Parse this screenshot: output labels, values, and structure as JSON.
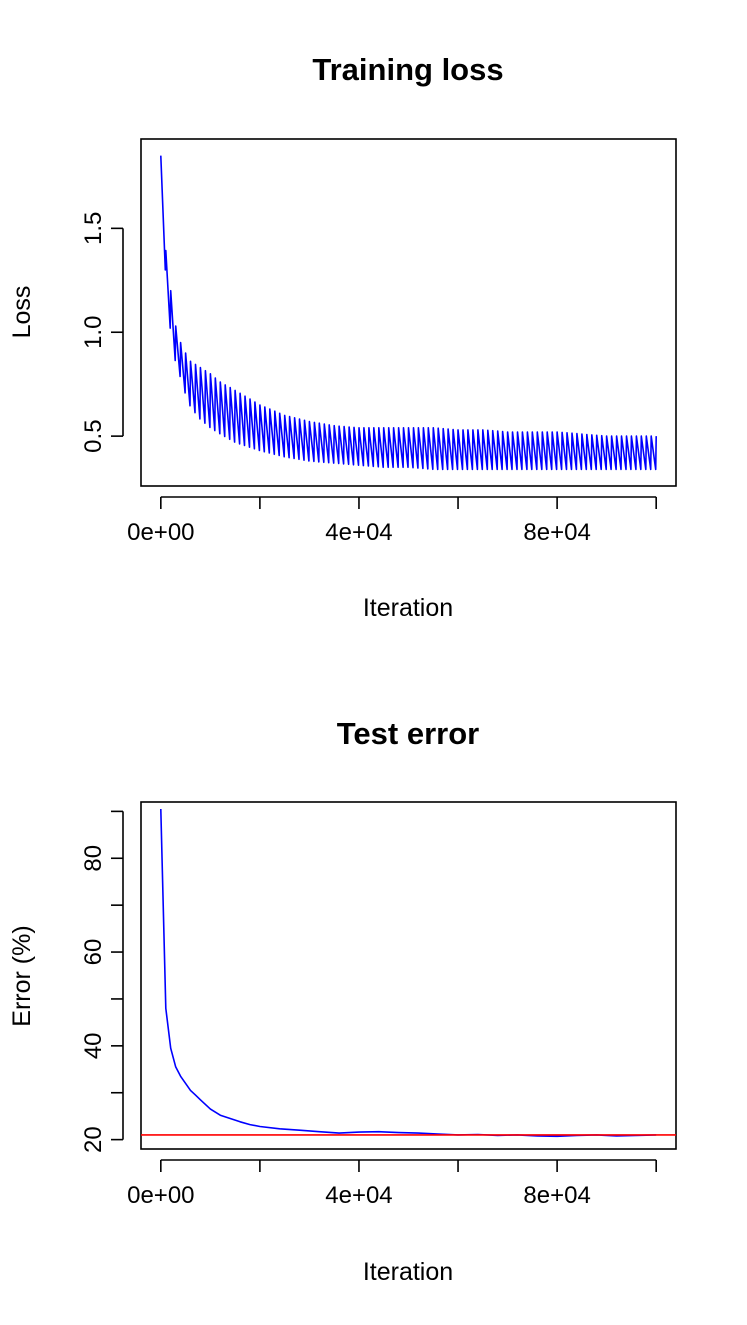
{
  "chart_data": [
    {
      "type": "line",
      "title": "Training loss",
      "xlabel": "Iteration",
      "ylabel": "Loss",
      "xlim": [
        -4000,
        104000
      ],
      "ylim": [
        0.26,
        1.93
      ],
      "xticks": [
        0,
        20000,
        40000,
        60000,
        80000,
        100000
      ],
      "xtick_labels": [
        "0e+00",
        "",
        "4e+04",
        "",
        "8e+04",
        ""
      ],
      "yticks": [
        0.5,
        1.0,
        1.5
      ],
      "ytick_labels": [
        "0.5",
        "1.0",
        "1.5"
      ],
      "grid": false,
      "series": [
        {
          "color": "#0000ff",
          "x": [
            0,
            300,
            600,
            900,
            1200,
            1500,
            2000,
            2500,
            3000,
            4000,
            5000,
            6000,
            8000,
            10000,
            12000,
            15000,
            20000,
            25000,
            30000,
            35000,
            40000,
            45000,
            50000,
            55000,
            60000,
            65000,
            70000,
            75000,
            80000,
            85000,
            90000,
            95000,
            100000
          ],
          "upper": [
            1.85,
            1.5,
            1.48,
            1.4,
            1.38,
            1.3,
            1.2,
            1.1,
            1.03,
            0.95,
            0.9,
            0.86,
            0.83,
            0.8,
            0.76,
            0.72,
            0.65,
            0.6,
            0.57,
            0.55,
            0.54,
            0.54,
            0.54,
            0.54,
            0.53,
            0.53,
            0.52,
            0.52,
            0.52,
            0.51,
            0.5,
            0.5,
            0.5
          ],
          "lower": [
            1.6,
            1.45,
            1.38,
            1.3,
            1.2,
            1.1,
            1.0,
            0.92,
            0.85,
            0.78,
            0.7,
            0.64,
            0.58,
            0.54,
            0.51,
            0.47,
            0.43,
            0.4,
            0.38,
            0.37,
            0.36,
            0.35,
            0.35,
            0.34,
            0.34,
            0.34,
            0.34,
            0.34,
            0.34,
            0.34,
            0.34,
            0.34,
            0.34
          ],
          "cycle_iterations": 1000
        }
      ]
    },
    {
      "type": "line",
      "title": "Test error",
      "xlabel": "Iteration",
      "ylabel": "Error (%)",
      "xlim": [
        -4000,
        104000
      ],
      "ylim": [
        18,
        92
      ],
      "xticks": [
        0,
        20000,
        40000,
        60000,
        80000,
        100000
      ],
      "xtick_labels": [
        "0e+00",
        "",
        "4e+04",
        "",
        "8e+04",
        ""
      ],
      "yticks": [
        20,
        30,
        40,
        50,
        60,
        70,
        80,
        90
      ],
      "ytick_labels": [
        "20",
        "",
        "40",
        "",
        "60",
        "",
        "80",
        ""
      ],
      "grid": false,
      "series": [
        {
          "color": "#0000ff",
          "x": [
            0,
            1000,
            2000,
            3000,
            4000,
            5000,
            6000,
            7000,
            8000,
            10000,
            12000,
            14000,
            16000,
            18000,
            20000,
            24000,
            28000,
            32000,
            36000,
            40000,
            44000,
            48000,
            52000,
            56000,
            60000,
            64000,
            68000,
            72000,
            76000,
            80000,
            84000,
            88000,
            92000,
            96000,
            100000
          ],
          "y": [
            90.5,
            48,
            39.5,
            35.5,
            33.5,
            32,
            30.5,
            29.5,
            28.5,
            26.5,
            25.2,
            24.5,
            23.8,
            23.2,
            22.8,
            22.3,
            22.0,
            21.7,
            21.4,
            21.6,
            21.7,
            21.5,
            21.4,
            21.2,
            21.0,
            21.1,
            20.9,
            21.0,
            20.8,
            20.7,
            20.9,
            21.0,
            20.8,
            20.9,
            21.0
          ]
        },
        {
          "color": "#ff0000",
          "reference_y": 21.0
        }
      ]
    }
  ]
}
